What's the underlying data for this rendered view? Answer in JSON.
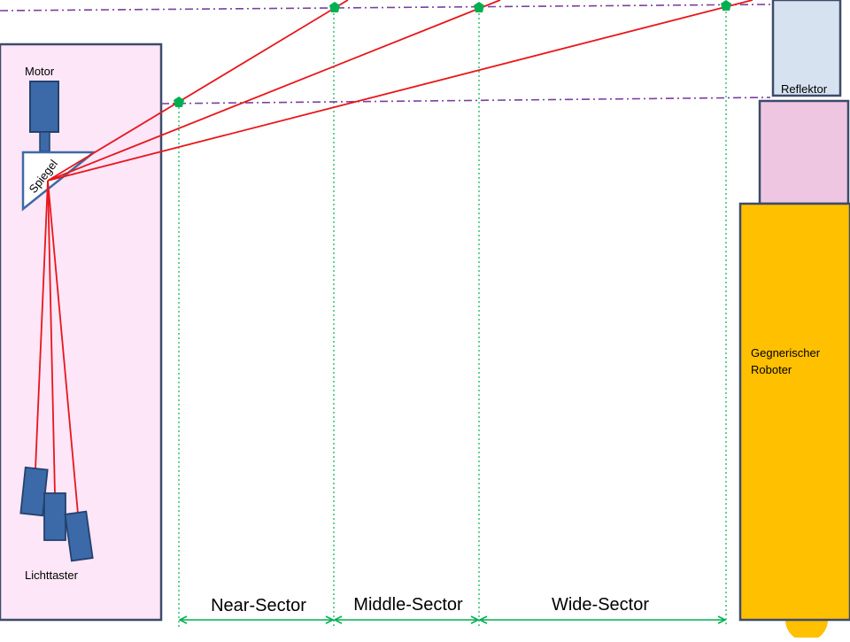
{
  "labels": {
    "motor": "Motor",
    "mirror": "Spiegel",
    "light_sensor": "Lichttaster",
    "reflector": "Reflektor",
    "opponent_line1": "Gegnerischer",
    "opponent_line2": "Roboter"
  },
  "sectors": {
    "near": "Near-Sector",
    "middle": "Middle-Sector",
    "wide": "Wide-Sector"
  },
  "colors": {
    "robot_fill": "#fce6f7",
    "robot_stroke": "#3d4b6b",
    "component_fill": "#3c6aa8",
    "component_stroke": "#23416e",
    "laser": "#e8161b",
    "marker": "#00b050",
    "guide": "#7b3fa0",
    "reflector_fill": "#d6e2f0",
    "pink_block": "#efc6e2",
    "opponent_fill": "#ffc000",
    "opponent_stroke": "#3d4b6b"
  }
}
